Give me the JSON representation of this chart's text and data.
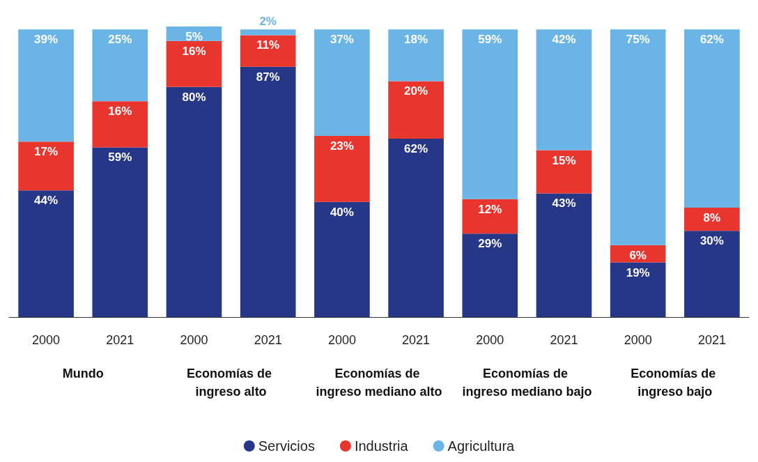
{
  "chart_data": {
    "type": "bar",
    "stacked": true,
    "categories": [
      "2000",
      "2021",
      "2000",
      "2021",
      "2000",
      "2021",
      "2000",
      "2021",
      "2000",
      "2021"
    ],
    "annotations": [
      "Mundo",
      "Economías de ingreso alto",
      "Economías de ingreso mediano alto",
      "Economías de ingreso mediano bajo",
      "Economías de ingreso bajo"
    ],
    "series": [
      {
        "name": "Servicios",
        "color": "#253786",
        "values": [
          44,
          59,
          80,
          87,
          40,
          62,
          29,
          43,
          19,
          30
        ],
        "value_labels": [
          "44%",
          "59%",
          "80%",
          "87%",
          "40%",
          "62%",
          "29%",
          "43%",
          "19%",
          "30%"
        ]
      },
      {
        "name": "Industria",
        "color": "#e8352d",
        "values": [
          17,
          16,
          16,
          11,
          23,
          20,
          12,
          15,
          6,
          8
        ],
        "value_labels": [
          "17%",
          "16%",
          "16%",
          "11%",
          "23%",
          "20%",
          "12%",
          "15%",
          "6%",
          "8%"
        ]
      },
      {
        "name": "Agricultura",
        "color": "#6bb5e6",
        "values": [
          39,
          25,
          5,
          2,
          37,
          18,
          59,
          42,
          75,
          62
        ],
        "value_labels": [
          "39%",
          "25%",
          "5%",
          "2%",
          "37%",
          "18%",
          "59%",
          "42%",
          "75%",
          "62%"
        ]
      }
    ],
    "ylim": [
      0,
      101
    ],
    "tick_labels": "x",
    "grid": false,
    "legend": "bottom"
  }
}
